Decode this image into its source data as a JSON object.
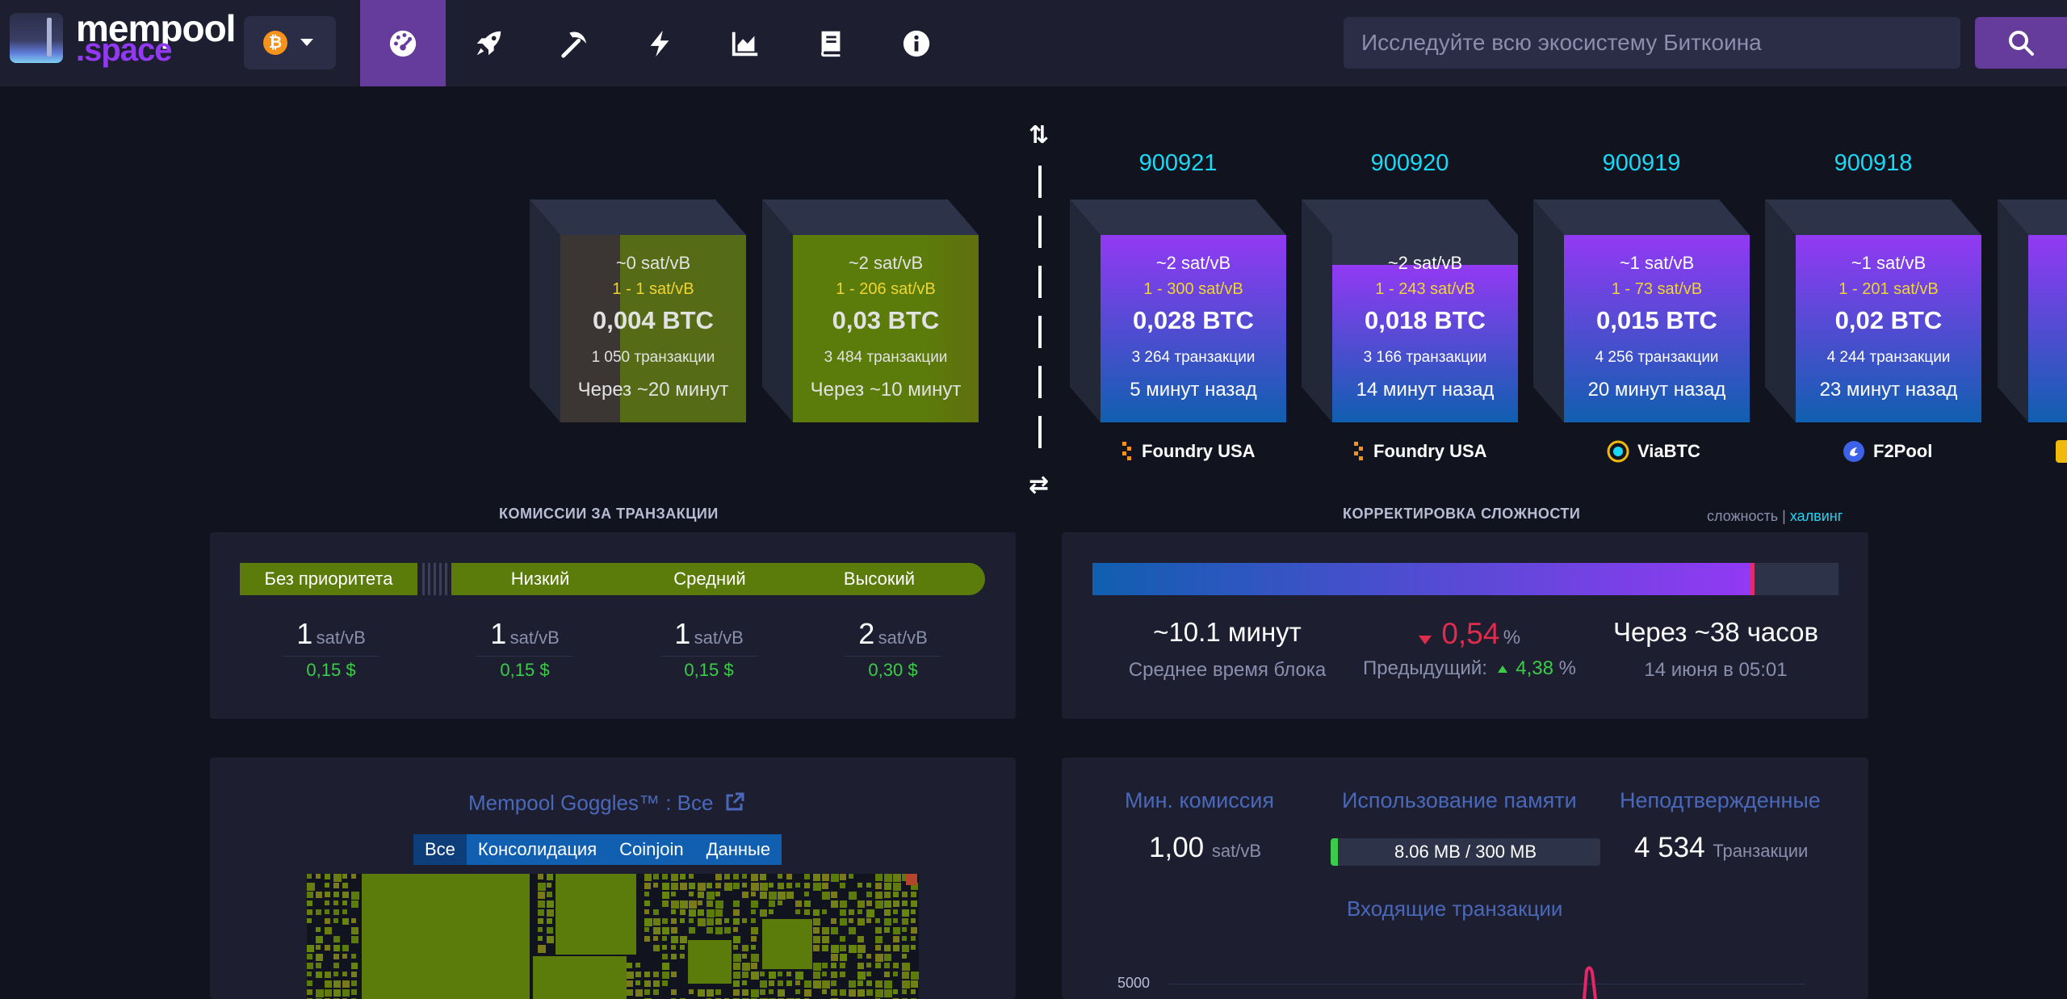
{
  "logo": {
    "part1": "mempool",
    "part2": ".space"
  },
  "network": {
    "symbol": "₿"
  },
  "nav": [
    "dashboard-icon",
    "rocket-icon",
    "mining-pick-icon",
    "lightning-icon",
    "graphs-icon",
    "docs-icon",
    "info-icon"
  ],
  "search": {
    "placeholder": "Исследуйте всю экосистему Биткоина"
  },
  "pending_blocks": [
    {
      "median": "~0 sat/vB",
      "range": "1 - 1 sat/vB",
      "total": "0,004 BTC",
      "tx": "1 050 транзакции",
      "eta": "Через ~20 минут",
      "fill": 0.68
    },
    {
      "median": "~2 sat/vB",
      "range": "1 - 206 sat/vB",
      "total": "0,03 BTC",
      "tx": "3 484 транзакции",
      "eta": "Через ~10 минут",
      "fill": 1.0
    }
  ],
  "mined_blocks": [
    {
      "height": "900921",
      "median": "~2 sat/vB",
      "range": "1 - 300 sat/vB",
      "total": "0,028 BTC",
      "tx": "3 264 транзакции",
      "time": "5 минут назад",
      "pool": "Foundry USA",
      "fill": 1.0
    },
    {
      "height": "900920",
      "median": "~2 sat/vB",
      "range": "1 - 243 sat/vB",
      "total": "0,018 BTC",
      "tx": "3 166 транзакции",
      "time": "14 минут назад",
      "pool": "Foundry USA",
      "fill": 0.84
    },
    {
      "height": "900919",
      "median": "~1 sat/vB",
      "range": "1 - 73 sat/vB",
      "total": "0,015 BTC",
      "tx": "4 256 транзакции",
      "time": "20 минут назад",
      "pool": "ViaBTC",
      "fill": 1.0
    },
    {
      "height": "900918",
      "median": "~1 sat/vB",
      "range": "1 - 201 sat/vB",
      "total": "0,02 BTC",
      "tx": "4 244 транзакции",
      "time": "23 минут назад",
      "pool": "F2Pool",
      "fill": 1.0
    }
  ],
  "fees": {
    "title": "КОМИССИИ ЗА ТРАНЗАКЦИИ",
    "labels": {
      "none": "Без приоритета",
      "low": "Низкий",
      "mid": "Средний",
      "high": "Высокий"
    },
    "unit": "sat/vB",
    "values": [
      {
        "rate": "1",
        "usd": "0,15 $"
      },
      {
        "rate": "1",
        "usd": "0,15 $"
      },
      {
        "rate": "1",
        "usd": "0,15 $"
      },
      {
        "rate": "2",
        "usd": "0,30 $"
      }
    ]
  },
  "difficulty": {
    "title": "КОРРЕКТИРОВКА СЛОЖНОСТИ",
    "link_difficulty": "сложность",
    "separator": "|",
    "link_halving": "халвинг",
    "progress": 0.887,
    "avg_time": "~10.1 минут",
    "avg_time_label": "Среднее время блока",
    "change": "0,54",
    "change_unit": "%",
    "previous_label": "Предыдущий:",
    "previous_value": "4,38",
    "previous_unit": "%",
    "eta": "Через ~38 часов",
    "eta_date": "14 июня в 05:01"
  },
  "goggles": {
    "title": "Mempool Goggles™ : Все",
    "tabs": [
      "Все",
      "Консолидация",
      "Coinjoin",
      "Данные"
    ]
  },
  "mempool_stats": {
    "min_fee_label": "Мин. комиссия",
    "min_fee_value": "1,00",
    "min_fee_unit": "sat/vB",
    "memory_label": "Использование памяти",
    "memory_value": "8.06 MB / 300 MB",
    "memory_fraction": 0.027,
    "unconfirmed_label": "Неподтвержденные",
    "unconfirmed_value": "4 534",
    "unconfirmed_unit": "Транзакции"
  },
  "incoming": {
    "title": "Входящие транзакции",
    "y_tick": "5000"
  },
  "colors": {
    "accent": "#653b9c",
    "fee_green": "#5b7c0a",
    "height_cyan": "#1bd8f4",
    "usd_green": "#3bcc49",
    "diff_red": "#e02b4c"
  }
}
